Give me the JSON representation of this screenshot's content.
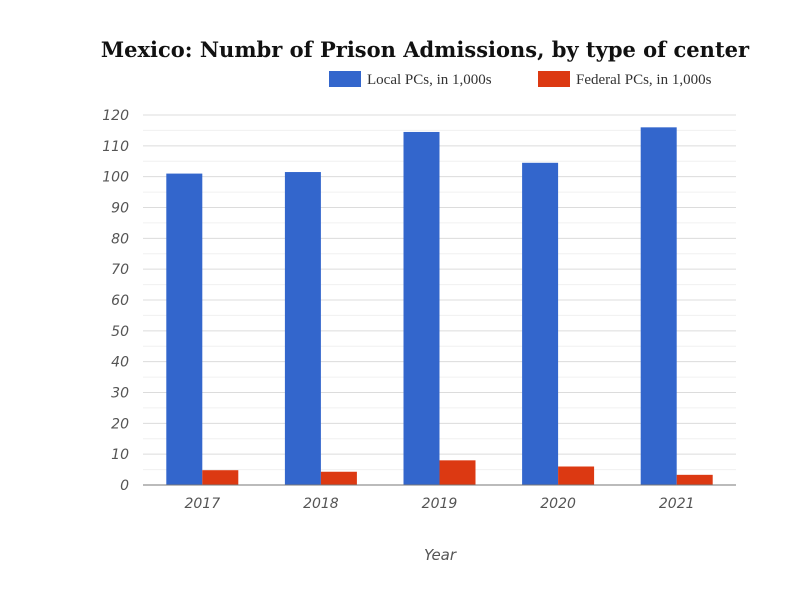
{
  "chart_data": {
    "type": "bar",
    "title": "Mexico: Numbr of Prison Admissions, by type of center",
    "xlabel": "Year",
    "ylabel": "",
    "categories": [
      "2017",
      "2018",
      "2019",
      "2020",
      "2021"
    ],
    "series": [
      {
        "name": "Local PCs, in 1,000s",
        "values": [
          101,
          101.5,
          114.5,
          104.5,
          116
        ],
        "color": "#3366cc"
      },
      {
        "name": "Federal PCs, in 1,000s",
        "values": [
          4.8,
          4.3,
          8,
          6,
          3.3
        ],
        "color": "#dc3912"
      }
    ],
    "ylim": [
      0,
      120
    ],
    "yticks": [
      0,
      10,
      20,
      30,
      40,
      50,
      60,
      70,
      80,
      90,
      100,
      110,
      120
    ],
    "grid": true,
    "legend_position": "top-right"
  }
}
